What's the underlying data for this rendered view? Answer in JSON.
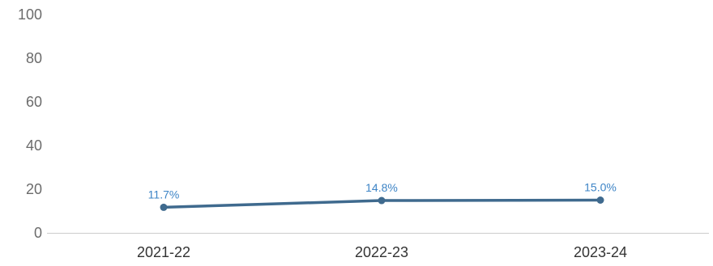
{
  "chart_data": {
    "type": "line",
    "title": "",
    "xlabel": "",
    "ylabel": "",
    "categories": [
      "2021-22",
      "2022-23",
      "2023-24"
    ],
    "series": [
      {
        "values": [
          11.7,
          14.8,
          15.0
        ],
        "labels": [
          "11.7%",
          "14.8%",
          "15.0%"
        ],
        "color": "#3f6a8e",
        "label_color": "#3d84c6"
      }
    ],
    "ylim": [
      0,
      100
    ],
    "yticks": [
      "0",
      "20",
      "40",
      "60",
      "80",
      "100"
    ],
    "grid": false,
    "legend": "none",
    "axis_color": "#cccccc"
  }
}
